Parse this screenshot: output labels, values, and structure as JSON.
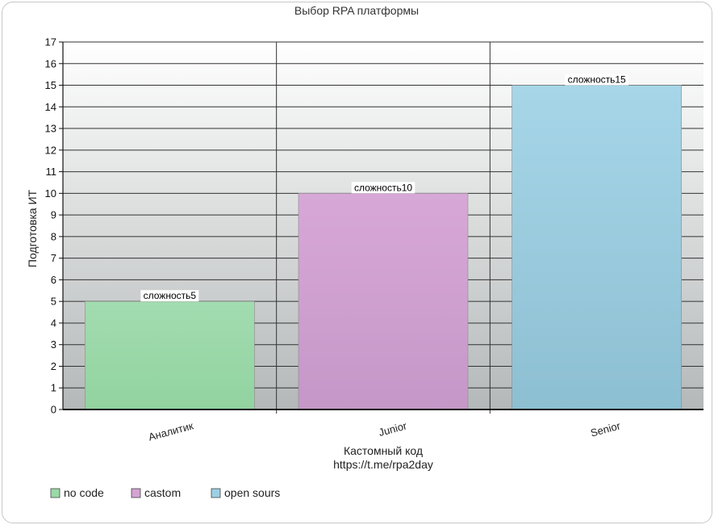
{
  "chart_data": {
    "type": "bar",
    "title": "Выбор RPA платформы",
    "xlabel": "Кастомный код",
    "xlabel_sub": "https://t.me/rpa2day",
    "ylabel": "Подготовка ИТ",
    "ylim": [
      0,
      17
    ],
    "yticks": [
      0,
      1,
      2,
      3,
      4,
      5,
      6,
      7,
      8,
      9,
      10,
      11,
      12,
      13,
      14,
      15,
      16,
      17
    ],
    "categories": [
      "Аналитик",
      "Junior",
      "Senior"
    ],
    "values": [
      5,
      10,
      15
    ],
    "data_labels": [
      "сложность5",
      "сложность10",
      "сложность15"
    ],
    "series": [
      {
        "name": "no code",
        "color": "#9ad9a8"
      },
      {
        "name": "castom",
        "color": "#d3a3d3"
      },
      {
        "name": "open sours",
        "color": "#9ccfe3"
      }
    ],
    "grid": true,
    "legend": "bottom-left"
  }
}
